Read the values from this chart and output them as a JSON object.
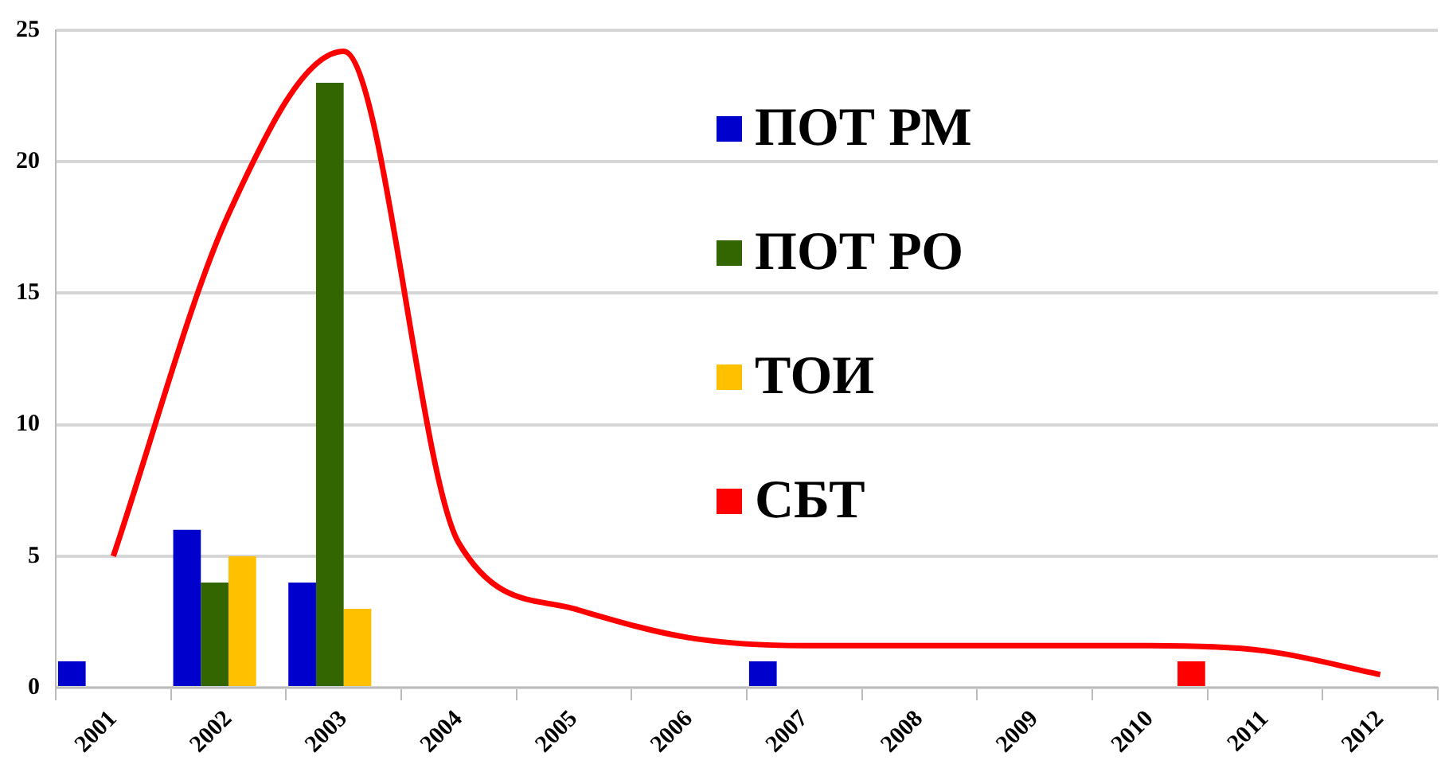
{
  "chart_data": {
    "type": "bar",
    "categories": [
      "2001",
      "2002",
      "2003",
      "2004",
      "2005",
      "2006",
      "2007",
      "2008",
      "2009",
      "2010",
      "2011",
      "2012"
    ],
    "series": [
      {
        "name": "ПОТ РМ",
        "color": "#0000cc",
        "values": [
          1,
          6,
          4,
          null,
          null,
          null,
          1,
          null,
          null,
          null,
          null,
          null
        ]
      },
      {
        "name": "ПОТ РО",
        "color": "#336600",
        "values": [
          null,
          4,
          23,
          null,
          null,
          null,
          null,
          null,
          null,
          null,
          null,
          null
        ]
      },
      {
        "name": "ТОИ",
        "color": "#ffc000",
        "values": [
          null,
          5,
          3,
          null,
          null,
          null,
          null,
          null,
          null,
          null,
          null,
          null
        ]
      },
      {
        "name": "СБТ",
        "color": "#ff0000",
        "values": [
          null,
          null,
          null,
          null,
          null,
          null,
          null,
          null,
          null,
          1,
          null,
          null
        ]
      },
      {
        "type": "line",
        "color": "#ff0000",
        "values": [
          5,
          18,
          24.2,
          5.5,
          3,
          1.9,
          1.6,
          1.6,
          1.6,
          1.6,
          1.4,
          0.5
        ]
      }
    ],
    "ylim": [
      0,
      25
    ],
    "yticks": [
      0,
      5,
      10,
      15,
      20,
      25
    ],
    "grid": "y",
    "legend": "top",
    "marker": "none"
  }
}
